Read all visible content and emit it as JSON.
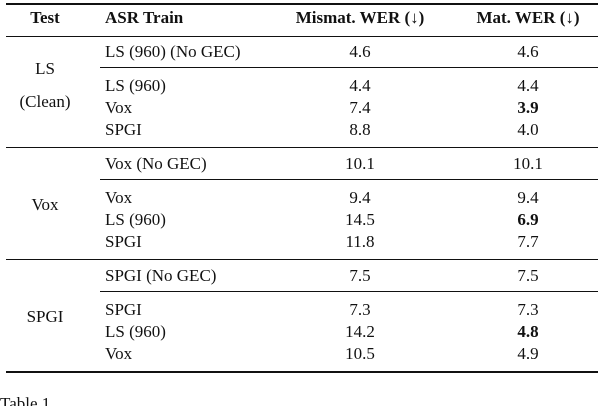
{
  "table": {
    "header": [
      "Test",
      "ASR Train",
      "Mismat. WER (↓)",
      "Mat. WER (↓)"
    ],
    "groups": [
      {
        "test": [
          "LS",
          "(Clean)"
        ],
        "baseline": {
          "asr_train": "LS (960) (No GEC)",
          "mismatched": "4.6",
          "matched": "4.6"
        },
        "rows": [
          {
            "asr_train": "LS (960)",
            "mismatched": "4.4",
            "matched": "4.4"
          },
          {
            "asr_train": "Vox",
            "mismatched": "7.4",
            "matched": "3.9",
            "matched_bold": true
          },
          {
            "asr_train": "SPGI",
            "mismatched": "8.8",
            "matched": "4.0"
          }
        ]
      },
      {
        "test": [
          "Vox"
        ],
        "baseline": {
          "asr_train": "Vox (No GEC)",
          "mismatched": "10.1",
          "matched": "10.1"
        },
        "rows": [
          {
            "asr_train": "Vox",
            "mismatched": "9.4",
            "matched": "9.4"
          },
          {
            "asr_train": "LS (960)",
            "mismatched": "14.5",
            "matched": "6.9",
            "matched_bold": true
          },
          {
            "asr_train": "SPGI",
            "mismatched": "11.8",
            "matched": "7.7"
          }
        ]
      },
      {
        "test": [
          "SPGI"
        ],
        "baseline": {
          "asr_train": "SPGI (No GEC)",
          "mismatched": "7.5",
          "matched": "7.5"
        },
        "rows": [
          {
            "asr_train": "SPGI",
            "mismatched": "7.3",
            "matched": "7.3"
          },
          {
            "asr_train": "LS (960)",
            "mismatched": "14.2",
            "matched": "4.8",
            "matched_bold": true
          },
          {
            "asr_train": "Vox",
            "mismatched": "10.5",
            "matched": "4.9"
          }
        ]
      }
    ]
  },
  "caption": "Table 1"
}
